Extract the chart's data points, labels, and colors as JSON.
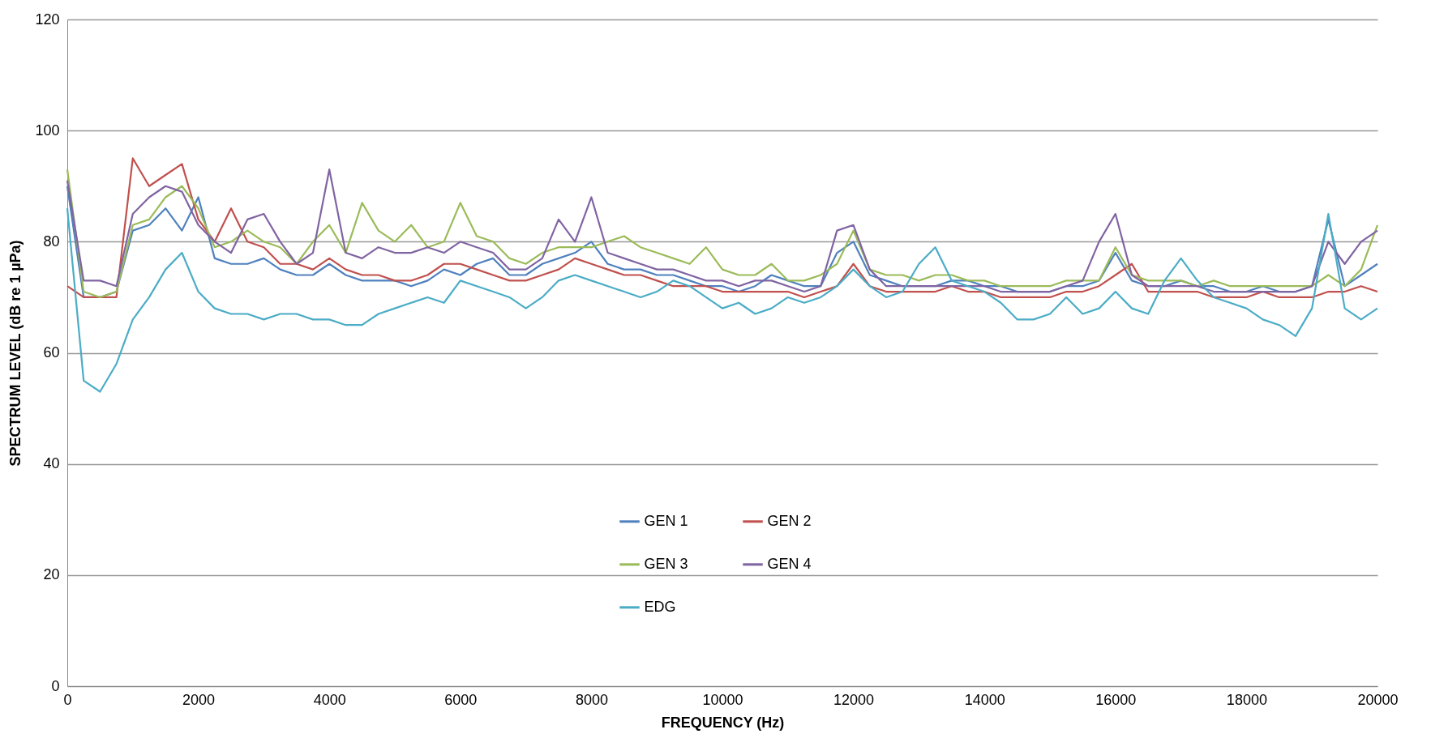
{
  "chart_data": {
    "type": "line",
    "xlabel": "FREQUENCY (Hz)",
    "ylabel": "SPECTRUM LEVEL (dB re 1 µPa)",
    "x": [
      0,
      250,
      500,
      750,
      1000,
      1250,
      1500,
      1750,
      2000,
      2250,
      2500,
      2750,
      3000,
      3250,
      3500,
      3750,
      4000,
      4250,
      4500,
      4750,
      5000,
      5250,
      5500,
      5750,
      6000,
      6250,
      6500,
      6750,
      7000,
      7250,
      7500,
      7750,
      8000,
      8250,
      8500,
      8750,
      9000,
      9250,
      9500,
      9750,
      10000,
      10250,
      10500,
      10750,
      11000,
      11250,
      11500,
      11750,
      12000,
      12250,
      12500,
      12750,
      13000,
      13250,
      13500,
      13750,
      14000,
      14250,
      14500,
      14750,
      15000,
      15250,
      15500,
      15750,
      16000,
      16250,
      16500,
      16750,
      17000,
      17250,
      17500,
      17750,
      18000,
      18250,
      18500,
      18750,
      19000,
      19250,
      19500,
      19750,
      20000
    ],
    "series": [
      {
        "name": "GEN 1",
        "color": "#4f81bd",
        "values": [
          90,
          70,
          70,
          71,
          82,
          83,
          86,
          82,
          88,
          77,
          76,
          76,
          77,
          75,
          74,
          74,
          76,
          74,
          73,
          73,
          73,
          72,
          73,
          75,
          74,
          76,
          77,
          74,
          74,
          76,
          77,
          78,
          80,
          76,
          75,
          75,
          74,
          74,
          73,
          72,
          72,
          71,
          72,
          74,
          73,
          72,
          72,
          78,
          80,
          74,
          73,
          72,
          72,
          72,
          73,
          73,
          72,
          72,
          71,
          71,
          71,
          72,
          72,
          73,
          78,
          73,
          72,
          72,
          73,
          72,
          72,
          71,
          71,
          72,
          71,
          71,
          72,
          84,
          72,
          74,
          76
        ]
      },
      {
        "name": "GEN 2",
        "color": "#c0504d",
        "values": [
          72,
          70,
          70,
          70,
          95,
          90,
          92,
          94,
          84,
          80,
          86,
          80,
          79,
          76,
          76,
          75,
          77,
          75,
          74,
          74,
          73,
          73,
          74,
          76,
          76,
          75,
          74,
          73,
          73,
          74,
          75,
          77,
          76,
          75,
          74,
          74,
          73,
          72,
          72,
          72,
          71,
          71,
          71,
          71,
          71,
          70,
          71,
          72,
          76,
          72,
          71,
          71,
          71,
          71,
          72,
          71,
          71,
          70,
          70,
          70,
          70,
          71,
          71,
          72,
          74,
          76,
          71,
          71,
          71,
          71,
          70,
          70,
          70,
          71,
          70,
          70,
          70,
          71,
          71,
          72,
          71
        ]
      },
      {
        "name": "GEN 3",
        "color": "#9bbb59",
        "values": [
          93,
          71,
          70,
          71,
          83,
          84,
          88,
          90,
          86,
          79,
          80,
          82,
          80,
          79,
          76,
          80,
          83,
          78,
          87,
          82,
          80,
          83,
          79,
          80,
          87,
          81,
          80,
          77,
          76,
          78,
          79,
          79,
          79,
          80,
          81,
          79,
          78,
          77,
          76,
          79,
          75,
          74,
          74,
          76,
          73,
          73,
          74,
          76,
          82,
          75,
          74,
          74,
          73,
          74,
          74,
          73,
          73,
          72,
          72,
          72,
          72,
          73,
          73,
          73,
          79,
          74,
          73,
          73,
          73,
          72,
          73,
          72,
          72,
          72,
          72,
          72,
          72,
          74,
          72,
          75,
          83
        ]
      },
      {
        "name": "GEN 4",
        "color": "#8064a2",
        "values": [
          91,
          73,
          73,
          72,
          85,
          88,
          90,
          89,
          83,
          80,
          78,
          84,
          85,
          80,
          76,
          78,
          93,
          78,
          77,
          79,
          78,
          78,
          79,
          78,
          80,
          79,
          78,
          75,
          75,
          77,
          84,
          80,
          88,
          78,
          77,
          76,
          75,
          75,
          74,
          73,
          73,
          72,
          73,
          73,
          72,
          71,
          72,
          82,
          83,
          75,
          72,
          72,
          72,
          72,
          72,
          72,
          72,
          71,
          71,
          71,
          71,
          72,
          73,
          80,
          85,
          74,
          72,
          72,
          72,
          72,
          71,
          71,
          71,
          71,
          71,
          71,
          72,
          80,
          76,
          80,
          82
        ]
      },
      {
        "name": "EDG",
        "color": "#4bacc6",
        "values": [
          86,
          55,
          53,
          58,
          66,
          70,
          75,
          78,
          71,
          68,
          67,
          67,
          66,
          67,
          67,
          66,
          66,
          65,
          65,
          67,
          68,
          69,
          70,
          69,
          73,
          72,
          71,
          70,
          68,
          70,
          73,
          74,
          73,
          72,
          71,
          70,
          71,
          73,
          72,
          70,
          68,
          69,
          67,
          68,
          70,
          69,
          70,
          72,
          75,
          72,
          70,
          71,
          76,
          79,
          73,
          72,
          71,
          69,
          66,
          66,
          67,
          70,
          67,
          68,
          71,
          68,
          67,
          73,
          77,
          73,
          70,
          69,
          68,
          66,
          65,
          63,
          68,
          85,
          68,
          66,
          68
        ]
      }
    ],
    "xlim": [
      0,
      20000
    ],
    "xticks": [
      0,
      2000,
      4000,
      6000,
      8000,
      10000,
      12000,
      14000,
      16000,
      18000,
      20000
    ],
    "ylim": [
      0,
      120
    ],
    "yticks": [
      0,
      20,
      40,
      60,
      80,
      100,
      120
    ],
    "grid": "y",
    "legend": "bottom",
    "line_style": "solid"
  }
}
